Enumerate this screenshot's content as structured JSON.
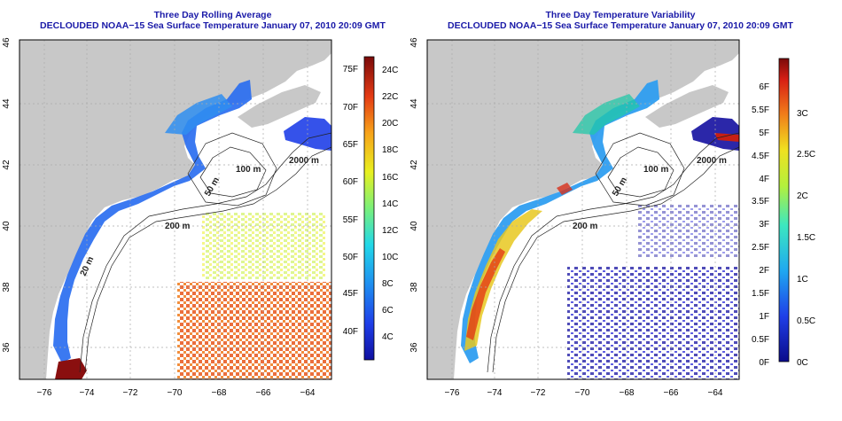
{
  "left_panel": {
    "title": "Three Day Rolling Average",
    "subtitle": "DECLOUDED NOAA−15 Sea Surface Temperature January 07, 2010 20:09 GMT",
    "lon_ticks": [
      "−76",
      "−74",
      "−72",
      "−70",
      "−68",
      "−66",
      "−64"
    ],
    "lat_ticks": [
      "36",
      "38",
      "40",
      "42",
      "44",
      "46"
    ],
    "contour_labels": [
      "200 m",
      "100 m",
      "50 m",
      "2000 m",
      "20 m"
    ],
    "colorbar": {
      "fahrenheit": [
        "40F",
        "45F",
        "50F",
        "55F",
        "60F",
        "65F",
        "70F",
        "75F"
      ],
      "celsius": [
        "4C",
        "6C",
        "8C",
        "10C",
        "12C",
        "14C",
        "16C",
        "18C",
        "20C",
        "22C",
        "24C"
      ]
    }
  },
  "right_panel": {
    "title": "Three Day Temperature Variability",
    "subtitle": "DECLOUDED NOAA−15 Sea Surface Temperature January 07, 2010 20:09 GMT",
    "lon_ticks": [
      "−76",
      "−74",
      "−72",
      "−70",
      "−68",
      "−66",
      "−64"
    ],
    "lat_ticks": [
      "36",
      "38",
      "40",
      "42",
      "44",
      "46"
    ],
    "contour_labels": [
      "200 m",
      "100 m",
      "50 m",
      "2000 m"
    ],
    "colorbar": {
      "fahrenheit": [
        "0F",
        "0.5F",
        "1F",
        "1.5F",
        "2F",
        "2.5F",
        "3F",
        "3.5F",
        "4F",
        "4.5F",
        "5F",
        "5.5F",
        "6F"
      ],
      "celsius": [
        "0C",
        "0.5C",
        "1C",
        "1.5C",
        "2C",
        "2.5C",
        "3C"
      ]
    }
  },
  "colors": {
    "land": "#c8c8c8",
    "ocean_nodata": "#ffffff",
    "title_text": "#1a1aa8",
    "contour": "#222222"
  }
}
